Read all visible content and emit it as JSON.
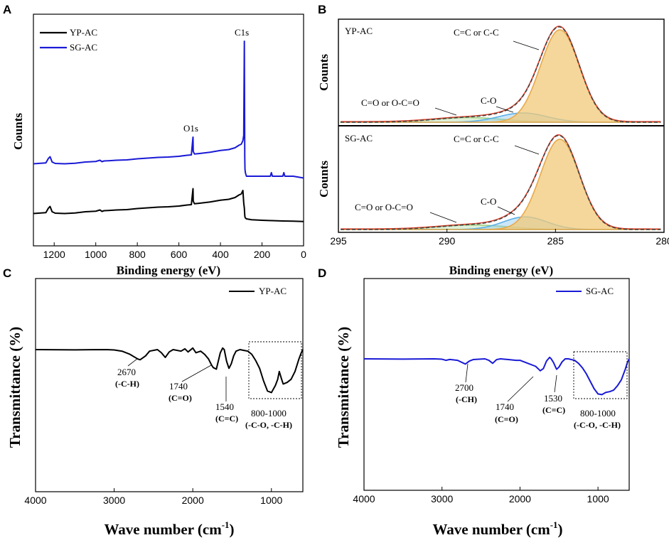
{
  "chart_data": [
    {
      "panel": "A",
      "type": "line",
      "title": "",
      "xlabel": "Binding energy (eV)",
      "ylabel": "Counts",
      "xlim": [
        1300,
        0
      ],
      "xticks": [
        1200,
        1000,
        800,
        600,
        400,
        200,
        0
      ],
      "colors": {
        "YP-AC": "#000000",
        "SG-AC": "#1a1ad6"
      },
      "annotations": [
        {
          "label": "C1s",
          "x": 285,
          "series": "SG-AC"
        },
        {
          "label": "O1s",
          "x": 532,
          "series": "SG-AC"
        }
      ],
      "series": [
        {
          "name": "YP-AC",
          "x": [
            1300,
            1240,
            1228,
            1220,
            1210,
            1195,
            1150,
            1100,
            1050,
            1000,
            980,
            970,
            960,
            940,
            900,
            850,
            800,
            750,
            700,
            650,
            600,
            560,
            540,
            533,
            532,
            531,
            525,
            500,
            450,
            400,
            360,
            330,
            310,
            300,
            292,
            288,
            285,
            283,
            282,
            280,
            275,
            250,
            200,
            150,
            100,
            50,
            0
          ],
          "y": [
            3,
            3.5,
            6,
            7,
            4,
            3.2,
            3,
            3.3,
            4,
            4.3,
            5,
            4.2,
            4.6,
            4.7,
            5,
            5.2,
            5.8,
            6.2,
            6.6,
            6.8,
            7.2,
            7.8,
            8,
            16,
            17,
            10,
            8.5,
            8.8,
            9.5,
            10.5,
            11,
            12,
            13.5,
            14,
            16,
            9,
            6,
            2,
            1,
            0.5,
            0,
            -0.5,
            -0.8,
            -1,
            -1.2,
            -1.3,
            -1.5
          ]
        },
        {
          "name": "SG-AC",
          "x": [
            1300,
            1240,
            1228,
            1220,
            1210,
            1195,
            1150,
            1100,
            1050,
            1000,
            980,
            970,
            960,
            940,
            900,
            850,
            800,
            750,
            700,
            650,
            600,
            560,
            540,
            533,
            532,
            531,
            525,
            500,
            450,
            400,
            360,
            330,
            310,
            300,
            292,
            288,
            285,
            283,
            282,
            280,
            275,
            250,
            200,
            160,
            155,
            150,
            100,
            95,
            90,
            50,
            0
          ],
          "y": [
            31,
            31.5,
            34,
            35,
            32,
            31.2,
            31,
            31.3,
            32,
            32.3,
            33,
            32.2,
            32.6,
            32.7,
            33,
            33.2,
            33.8,
            34.2,
            34.6,
            34.8,
            35.2,
            35.8,
            36,
            45,
            46,
            38,
            36.5,
            36.8,
            37.5,
            38.5,
            39,
            40,
            41.5,
            42,
            44,
            47,
            100,
            35,
            28,
            26,
            24,
            24,
            24,
            24,
            26,
            24,
            24,
            26,
            24,
            24,
            23
          ]
        }
      ]
    },
    {
      "panel": "B",
      "type": "line",
      "title": "",
      "xlabel": "Binding energy (eV)",
      "ylabel": "Counts",
      "xlim": [
        295,
        280
      ],
      "xticks": [
        295,
        290,
        285,
        280
      ],
      "subplots": [
        {
          "name": "YP-AC",
          "components": [
            {
              "label": "C=C or C-C",
              "center": 284.8,
              "amplitude": 100,
              "sigma": 0.9
            },
            {
              "label": "C-O",
              "center": 286.5,
              "amplitude": 10,
              "sigma": 1.1
            },
            {
              "label": "C=O or O-C=O",
              "center": 289.0,
              "amplitude": 5,
              "sigma": 1.6
            }
          ]
        },
        {
          "name": "SG-AC",
          "components": [
            {
              "label": "C=C or C-C",
              "center": 284.8,
              "amplitude": 100,
              "sigma": 0.9
            },
            {
              "label": "C-O",
              "center": 286.4,
              "amplitude": 14,
              "sigma": 1.0
            },
            {
              "label": "C=O or O-C=O",
              "center": 288.8,
              "amplitude": 5,
              "sigma": 1.6
            }
          ]
        }
      ]
    },
    {
      "panel": "C",
      "type": "line",
      "title": "",
      "xlabel": "Wave number (cm⁻¹)",
      "ylabel": "Transmittance (%)",
      "xlim": [
        4000,
        600
      ],
      "xticks": [
        4000,
        3000,
        2000,
        1000
      ],
      "legend": "YP-AC",
      "color": "#000000",
      "x": [
        4000,
        3500,
        3100,
        3000,
        2900,
        2800,
        2700,
        2670,
        2600,
        2550,
        2450,
        2400,
        2350,
        2300,
        2250,
        2150,
        2100,
        2060,
        2000,
        1960,
        1900,
        1850,
        1800,
        1760,
        1740,
        1700,
        1650,
        1620,
        1600,
        1570,
        1540,
        1510,
        1480,
        1450,
        1400,
        1350,
        1300,
        1250,
        1200,
        1150,
        1100,
        1050,
        1000,
        950,
        920,
        900,
        870,
        850,
        800,
        750,
        700,
        650,
        620,
        600
      ],
      "y": [
        0,
        -0.3,
        0,
        -0.5,
        -2,
        -6,
        -12,
        -13,
        -8,
        -2,
        0,
        -4,
        -10,
        -3,
        0,
        -2,
        1,
        -3,
        2,
        -4,
        -2,
        -6,
        -12,
        -20,
        -23,
        -25,
        -4,
        2,
        0,
        -15,
        -24,
        -18,
        -8,
        -2,
        0,
        -1,
        -2,
        -6,
        -14,
        -24,
        -40,
        -53,
        -55,
        -46,
        -38,
        -28,
        -38,
        -44,
        -42,
        -38,
        -28,
        -12,
        -4,
        0
      ]
    },
    {
      "panel": "D",
      "type": "line",
      "title": "",
      "xlabel": "Wave number (cm⁻¹)",
      "ylabel": "Transmittance (%)",
      "xlim": [
        4000,
        600
      ],
      "xticks": [
        4000,
        3000,
        2000,
        1000
      ],
      "legend": "SG-AC",
      "color": "#1a1ad6",
      "x": [
        4000,
        3500,
        3100,
        3000,
        2950,
        2900,
        2800,
        2720,
        2700,
        2650,
        2600,
        2450,
        2400,
        2350,
        2300,
        2250,
        2150,
        2050,
        2000,
        1950,
        1900,
        1800,
        1760,
        1740,
        1700,
        1660,
        1620,
        1600,
        1570,
        1540,
        1530,
        1500,
        1460,
        1420,
        1380,
        1340,
        1300,
        1250,
        1200,
        1150,
        1100,
        1050,
        1000,
        950,
        900,
        850,
        800,
        750,
        700,
        650,
        620,
        600
      ],
      "y": [
        0,
        -0.3,
        0,
        -0.5,
        -2,
        -0.8,
        -2,
        -6,
        -7,
        -3,
        -1,
        0,
        -2,
        -6,
        -1,
        0,
        -1,
        -2,
        -2,
        -4,
        -6,
        -10,
        -14,
        -16,
        -13,
        -3,
        2,
        0,
        -5,
        -12,
        -14,
        -11,
        -4,
        0,
        0,
        -1,
        -2,
        -6,
        -12,
        -20,
        -30,
        -40,
        -47,
        -48,
        -45,
        -44,
        -42,
        -36,
        -28,
        -14,
        -4,
        0
      ]
    }
  ],
  "panels": {
    "a": {
      "letter": "A",
      "ylabel": "Counts",
      "xlabel": "Binding energy (eV)",
      "legend": [
        "YP-AC",
        "SG-AC"
      ],
      "peak_c1s": "C1s",
      "peak_o1s": "O1s",
      "ticks": [
        "1200",
        "1000",
        "800",
        "600",
        "400",
        "200",
        "0"
      ]
    },
    "b": {
      "letter": "B",
      "ylabel_top": "Counts",
      "ylabel_bottom": "Counts",
      "xlabel": "Binding energy (eV)",
      "label_top": "YP-AC",
      "label_bottom": "SG-AC",
      "cc": "C=C or C-C",
      "co": "C-O",
      "coo": "C=O or O-C=O",
      "ticks": [
        "295",
        "290",
        "285",
        "280"
      ]
    },
    "c": {
      "letter": "C",
      "ylabel": "Transmittance (%)",
      "xlabel": "Wave number (cm",
      "xlabel_sup": "-1",
      "xlabel_end": ")",
      "legend": "YP-AC",
      "a1_num": "2670",
      "a1_lab": "(-C-H)",
      "a2_num": "1740",
      "a2_lab": "(C=O)",
      "a3_num": "1540",
      "a3_lab": "(C=C)",
      "a4_num": "800-1000",
      "a4_lab": "(-C-O, -C-H)",
      "ticks": [
        "4000",
        "3000",
        "2000",
        "1000"
      ]
    },
    "d": {
      "letter": "D",
      "ylabel": "Transmittance (%)",
      "xlabel": "Wave number (cm",
      "xlabel_sup": "-1",
      "xlabel_end": ")",
      "legend": "SG-AC",
      "a1_num": "2700",
      "a1_lab": "(-CH)",
      "a2_num": "1740",
      "a2_lab": "(C=O)",
      "a3_num": "1530",
      "a3_lab": "(C=C)",
      "a4_num": "800-1000",
      "a4_lab": "(-C-O, -C-H)",
      "ticks": [
        "4000",
        "3000",
        "2000",
        "1000"
      ]
    }
  }
}
